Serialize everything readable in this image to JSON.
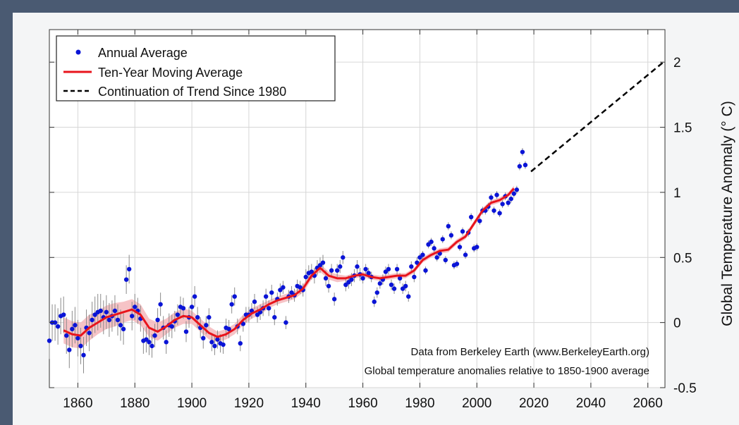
{
  "chart_data": {
    "type": "scatter",
    "title": "",
    "xlabel": "",
    "ylabel": "Global Temperature Anomaly (° C)",
    "xlim": [
      1850,
      2066
    ],
    "ylim": [
      -0.5,
      2.25
    ],
    "x_ticks": [
      1860,
      1880,
      1900,
      1920,
      1940,
      1960,
      1980,
      2000,
      2020,
      2040,
      2060
    ],
    "y_ticks": [
      -0.5,
      0,
      0.5,
      1,
      1.5,
      2
    ],
    "grid": true,
    "legend_position": "top-left",
    "legend": [
      {
        "label": "Annual Average",
        "style": "dot",
        "color": "#0a14d6"
      },
      {
        "label": "Ten-Year Moving Average",
        "style": "line",
        "color": "#e8141c"
      },
      {
        "label": "Continuation of Trend Since 1980",
        "style": "dashed",
        "color": "#000000"
      }
    ],
    "annotations": [
      "Data from Berkeley Earth (www.BerkeleyEarth.org)",
      "Global temperature anomalies relative to 1850-1900 average"
    ],
    "series": [
      {
        "name": "Annual Average",
        "style": "points_with_error_bars",
        "color": "#0a14d6",
        "x": [
          1850,
          1851,
          1852,
          1853,
          1854,
          1855,
          1856,
          1857,
          1858,
          1859,
          1860,
          1861,
          1862,
          1863,
          1864,
          1865,
          1866,
          1867,
          1868,
          1869,
          1870,
          1871,
          1872,
          1873,
          1874,
          1875,
          1876,
          1877,
          1878,
          1879,
          1880,
          1881,
          1882,
          1883,
          1884,
          1885,
          1886,
          1887,
          1888,
          1889,
          1890,
          1891,
          1892,
          1893,
          1894,
          1895,
          1896,
          1897,
          1898,
          1899,
          1900,
          1901,
          1902,
          1903,
          1904,
          1905,
          1906,
          1907,
          1908,
          1909,
          1910,
          1911,
          1912,
          1913,
          1914,
          1915,
          1916,
          1917,
          1918,
          1919,
          1920,
          1921,
          1922,
          1923,
          1924,
          1925,
          1926,
          1927,
          1928,
          1929,
          1930,
          1931,
          1932,
          1933,
          1934,
          1935,
          1936,
          1937,
          1938,
          1939,
          1940,
          1941,
          1942,
          1943,
          1944,
          1945,
          1946,
          1947,
          1948,
          1949,
          1950,
          1951,
          1952,
          1953,
          1954,
          1955,
          1956,
          1957,
          1958,
          1959,
          1960,
          1961,
          1962,
          1963,
          1964,
          1965,
          1966,
          1967,
          1968,
          1969,
          1970,
          1971,
          1972,
          1973,
          1974,
          1975,
          1976,
          1977,
          1978,
          1979,
          1980,
          1981,
          1982,
          1983,
          1984,
          1985,
          1986,
          1987,
          1988,
          1989,
          1990,
          1991,
          1992,
          1993,
          1994,
          1995,
          1996,
          1997,
          1998,
          1999,
          2000,
          2001,
          2002,
          2003,
          2004,
          2005,
          2006,
          2007,
          2008,
          2009,
          2010,
          2011,
          2012,
          2013,
          2014,
          2015,
          2016,
          2017
        ],
        "y": [
          -0.14,
          0.0,
          0.0,
          -0.03,
          0.05,
          0.06,
          -0.1,
          -0.21,
          -0.05,
          -0.02,
          -0.12,
          -0.18,
          -0.25,
          -0.04,
          -0.08,
          0.02,
          0.06,
          0.08,
          0.09,
          0.04,
          0.08,
          0.02,
          0.05,
          0.09,
          0.02,
          -0.02,
          -0.05,
          0.33,
          0.41,
          0.05,
          0.12,
          0.09,
          0.03,
          -0.14,
          -0.13,
          -0.15,
          -0.18,
          -0.1,
          0.02,
          0.14,
          -0.04,
          -0.15,
          -0.02,
          -0.03,
          0.01,
          0.06,
          0.12,
          0.11,
          -0.07,
          0.04,
          0.12,
          0.2,
          0.04,
          -0.04,
          -0.12,
          -0.02,
          0.04,
          -0.15,
          -0.18,
          -0.13,
          -0.16,
          -0.17,
          -0.04,
          -0.05,
          0.14,
          0.2,
          -0.03,
          -0.16,
          -0.01,
          0.06,
          0.06,
          0.09,
          0.16,
          0.06,
          0.08,
          0.11,
          0.2,
          0.11,
          0.23,
          0.04,
          0.18,
          0.25,
          0.27,
          0.0,
          0.2,
          0.23,
          0.21,
          0.28,
          0.27,
          0.25,
          0.35,
          0.38,
          0.39,
          0.36,
          0.42,
          0.44,
          0.46,
          0.34,
          0.28,
          0.4,
          0.18,
          0.4,
          0.43,
          0.5,
          0.29,
          0.31,
          0.33,
          0.36,
          0.43,
          0.37,
          0.34,
          0.41,
          0.38,
          0.35,
          0.16,
          0.23,
          0.3,
          0.33,
          0.39,
          0.41,
          0.29,
          0.26,
          0.41,
          0.34,
          0.26,
          0.28,
          0.2,
          0.43,
          0.35,
          0.46,
          0.5,
          0.52,
          0.4,
          0.6,
          0.62,
          0.57,
          0.5,
          0.53,
          0.64,
          0.48,
          0.74,
          0.67,
          0.44,
          0.45,
          0.58,
          0.7,
          0.52,
          0.69,
          0.81,
          0.57,
          0.58,
          0.78,
          0.86,
          0.86,
          0.89,
          0.96,
          0.86,
          0.98,
          0.84,
          0.91,
          0.97,
          0.92,
          0.95,
          0.99,
          1.02,
          1.2,
          1.31,
          1.21
        ],
        "error": [
          0.14,
          0.14,
          0.14,
          0.14,
          0.14,
          0.14,
          0.14,
          0.14,
          0.14,
          0.14,
          0.14,
          0.14,
          0.14,
          0.14,
          0.14,
          0.14,
          0.14,
          0.14,
          0.13,
          0.13,
          0.13,
          0.13,
          0.12,
          0.12,
          0.12,
          0.12,
          0.12,
          0.11,
          0.11,
          0.11,
          0.1,
          0.1,
          0.1,
          0.1,
          0.1,
          0.1,
          0.09,
          0.09,
          0.09,
          0.09,
          0.09,
          0.09,
          0.09,
          0.09,
          0.08,
          0.08,
          0.08,
          0.08,
          0.08,
          0.08,
          0.08,
          0.08,
          0.08,
          0.08,
          0.08,
          0.07,
          0.07,
          0.07,
          0.07,
          0.07,
          0.07,
          0.07,
          0.07,
          0.07,
          0.07,
          0.07,
          0.06,
          0.06,
          0.06,
          0.06,
          0.06,
          0.06,
          0.06,
          0.06,
          0.06,
          0.06,
          0.06,
          0.06,
          0.06,
          0.06,
          0.05,
          0.05,
          0.05,
          0.05,
          0.05,
          0.05,
          0.05,
          0.05,
          0.05,
          0.05,
          0.06,
          0.06,
          0.06,
          0.06,
          0.06,
          0.06,
          0.06,
          0.06,
          0.05,
          0.05,
          0.05,
          0.05,
          0.05,
          0.05,
          0.05,
          0.05,
          0.05,
          0.05,
          0.05,
          0.05,
          0.04,
          0.04,
          0.04,
          0.04,
          0.04,
          0.04,
          0.04,
          0.04,
          0.04,
          0.04,
          0.04,
          0.04,
          0.04,
          0.04,
          0.04,
          0.04,
          0.04,
          0.04,
          0.04,
          0.04,
          0.03,
          0.03,
          0.03,
          0.03,
          0.03,
          0.03,
          0.03,
          0.03,
          0.03,
          0.03,
          0.03,
          0.03,
          0.03,
          0.03,
          0.03,
          0.03,
          0.03,
          0.03,
          0.03,
          0.03,
          0.03,
          0.03,
          0.03,
          0.03,
          0.03,
          0.03,
          0.03,
          0.03,
          0.03,
          0.03,
          0.03,
          0.03,
          0.03,
          0.03,
          0.03,
          0.03,
          0.03,
          0.03
        ]
      },
      {
        "name": "Ten-Year Moving Average",
        "style": "line_with_band",
        "color": "#e8141c",
        "band_color": "#f4b8bc",
        "x": [
          1855,
          1858,
          1861,
          1864,
          1867,
          1870,
          1873,
          1876,
          1879,
          1882,
          1885,
          1888,
          1891,
          1894,
          1897,
          1900,
          1903,
          1906,
          1909,
          1912,
          1915,
          1918,
          1921,
          1924,
          1927,
          1930,
          1933,
          1936,
          1939,
          1942,
          1945,
          1948,
          1951,
          1954,
          1957,
          1960,
          1963,
          1966,
          1969,
          1972,
          1975,
          1978,
          1981,
          1984,
          1987,
          1990,
          1993,
          1996,
          1999,
          2002,
          2005,
          2008,
          2011,
          2013
        ],
        "y": [
          -0.06,
          -0.09,
          -0.1,
          -0.04,
          0.0,
          0.04,
          0.06,
          0.08,
          0.1,
          0.06,
          -0.04,
          -0.07,
          -0.03,
          0.02,
          0.05,
          0.04,
          -0.02,
          -0.08,
          -0.11,
          -0.09,
          -0.05,
          0.02,
          0.07,
          0.1,
          0.14,
          0.17,
          0.19,
          0.21,
          0.26,
          0.36,
          0.42,
          0.36,
          0.34,
          0.34,
          0.36,
          0.37,
          0.35,
          0.34,
          0.35,
          0.36,
          0.36,
          0.4,
          0.48,
          0.52,
          0.55,
          0.56,
          0.62,
          0.66,
          0.76,
          0.86,
          0.92,
          0.94,
          0.98,
          1.03
        ],
        "band": [
          0.1,
          0.1,
          0.1,
          0.1,
          0.09,
          0.09,
          0.09,
          0.08,
          0.08,
          0.08,
          0.07,
          0.07,
          0.06,
          0.06,
          0.06,
          0.05,
          0.05,
          0.05,
          0.04,
          0.04,
          0.04,
          0.04,
          0.04,
          0.04,
          0.03,
          0.03,
          0.03,
          0.03,
          0.03,
          0.03,
          0.03,
          0.03,
          0.03,
          0.02,
          0.02,
          0.02,
          0.02,
          0.02,
          0.02,
          0.02,
          0.02,
          0.02,
          0.02,
          0.02,
          0.02,
          0.02,
          0.02,
          0.02,
          0.02,
          0.02,
          0.02,
          0.02,
          0.02,
          0.02
        ]
      },
      {
        "name": "Continuation of Trend Since 1980",
        "style": "dashed_line",
        "color": "#000000",
        "x": [
          2019,
          2066
        ],
        "y": [
          1.16,
          2.01
        ]
      }
    ]
  }
}
